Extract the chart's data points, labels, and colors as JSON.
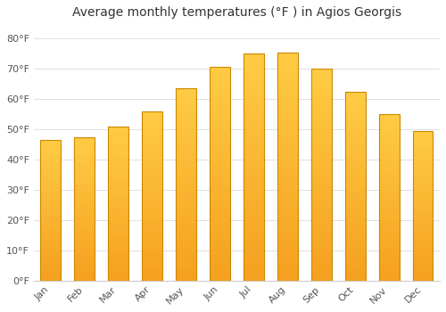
{
  "title": "Average monthly temperatures (°F ) in Agios Georgis",
  "months": [
    "Jan",
    "Feb",
    "Mar",
    "Apr",
    "May",
    "Jun",
    "Jul",
    "Aug",
    "Sep",
    "Oct",
    "Nov",
    "Dec"
  ],
  "values": [
    46.5,
    47.5,
    51.0,
    56.0,
    63.5,
    70.5,
    75.0,
    75.5,
    70.0,
    62.5,
    55.0,
    49.5
  ],
  "bar_color_top": "#FFCC44",
  "bar_color_bottom": "#F5A020",
  "bar_edge_color": "#CC8800",
  "background_color": "#ffffff",
  "plot_bg_color": "#ffffff",
  "ylim": [
    0,
    85
  ],
  "yticks": [
    0,
    10,
    20,
    30,
    40,
    50,
    60,
    70,
    80
  ],
  "ytick_labels": [
    "0°F",
    "10°F",
    "20°F",
    "30°F",
    "40°F",
    "50°F",
    "60°F",
    "70°F",
    "80°F"
  ],
  "title_fontsize": 10,
  "tick_fontsize": 8,
  "grid_color": "#e0e0e0",
  "font_family": "DejaVu Sans"
}
